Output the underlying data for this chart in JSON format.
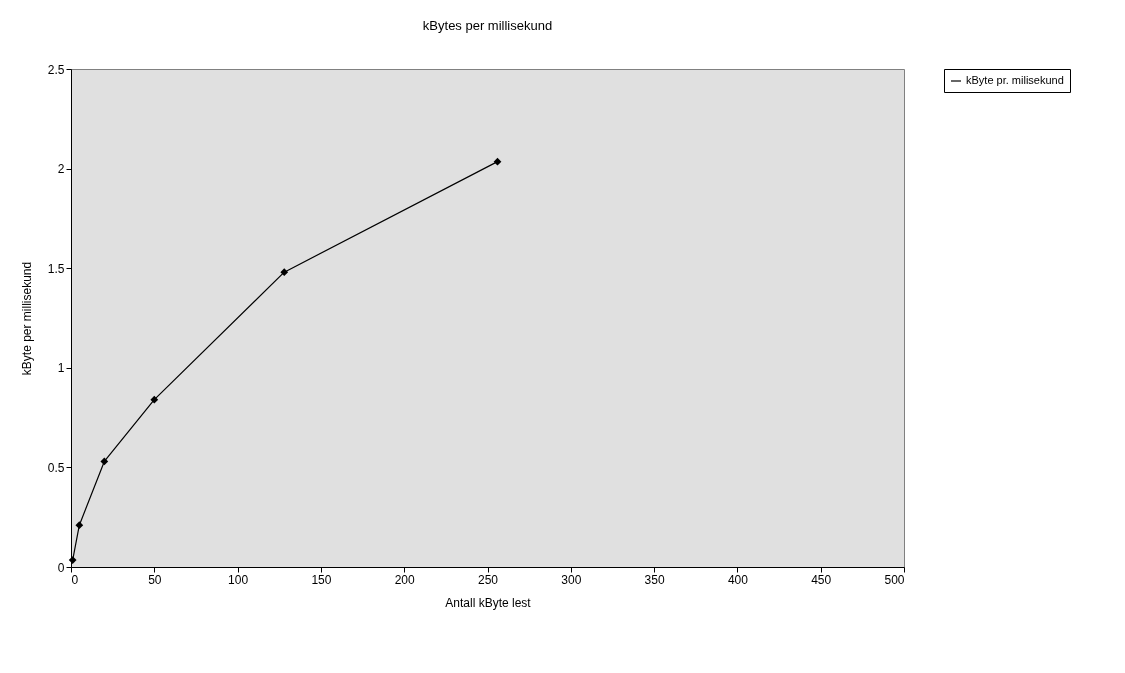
{
  "chart_data": {
    "type": "line",
    "title": "kBytes per millisekund",
    "xlabel": "Antall kByte lest",
    "ylabel": "kByte per millisekund",
    "x": [
      1,
      5,
      20,
      50,
      128,
      256
    ],
    "series": [
      {
        "name": "kByte pr. milisekund",
        "color": "#000000",
        "values": [
          0.035,
          0.21,
          0.53,
          0.84,
          1.48,
          2.035
        ]
      }
    ],
    "xlim": [
      0,
      500
    ],
    "xticks": [
      0,
      50,
      100,
      150,
      200,
      250,
      300,
      350,
      400,
      450,
      500
    ],
    "ylim": [
      0,
      2.5
    ],
    "yticks": [
      0,
      0.5,
      1,
      1.5,
      2,
      2.5
    ],
    "grid": false,
    "legend": "right",
    "marker": "diamond",
    "line_style": "solid"
  }
}
